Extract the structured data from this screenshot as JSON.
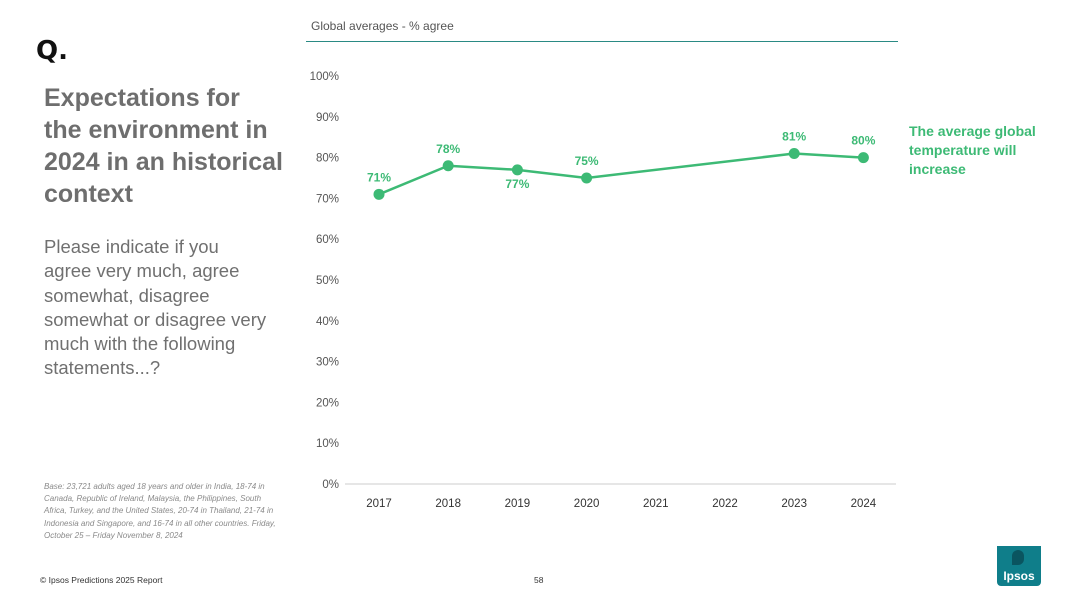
{
  "slide": {
    "marker": "Q.",
    "title": "Expectations for the environment in 2024 in an historical context",
    "question": "Please indicate if you agree very much, agree somewhat, disagree somewhat or disagree very much with the following statements...?",
    "base_note": "Base: 23,721 adults aged 18 years and older in India, 18-74 in Canada, Republic of Ireland, Malaysia, the Philippines, South Africa, Turkey, and the United States, 20-74 in Thailand, 21-74 in Indonesia and Singapore, and 16-74 in all other countries. Friday, October 25 – Friday November 8, 2024",
    "copyright": "© Ipsos Predictions 2025 Report",
    "page_number": "58",
    "logo_text": "Ipsos"
  },
  "colors": {
    "series": "#3dba75",
    "rule": "#2a8a84",
    "axis": "#cccccc",
    "tick_text": "#555555",
    "logo": "#0f7e8a"
  },
  "chart_data": {
    "type": "line",
    "subtitle": "Global averages - % agree",
    "x": [
      "2017",
      "2018",
      "2019",
      "2020",
      "2021",
      "2022",
      "2023",
      "2024"
    ],
    "series": [
      {
        "name": "The average global temperature will increase",
        "points": [
          {
            "x": "2017",
            "y": 71,
            "label": "71%"
          },
          {
            "x": "2018",
            "y": 78,
            "label": "78%"
          },
          {
            "x": "2019",
            "y": 77,
            "label": "77%"
          },
          {
            "x": "2020",
            "y": 75,
            "label": "75%"
          },
          {
            "x": "2023",
            "y": 81,
            "label": "81%"
          },
          {
            "x": "2024",
            "y": 80,
            "label": "80%"
          }
        ]
      }
    ],
    "y_ticks": [
      "0%",
      "10%",
      "20%",
      "30%",
      "40%",
      "50%",
      "60%",
      "70%",
      "80%",
      "90%",
      "100%"
    ],
    "ylim": [
      0,
      100
    ],
    "grid": false,
    "legend": "right"
  }
}
